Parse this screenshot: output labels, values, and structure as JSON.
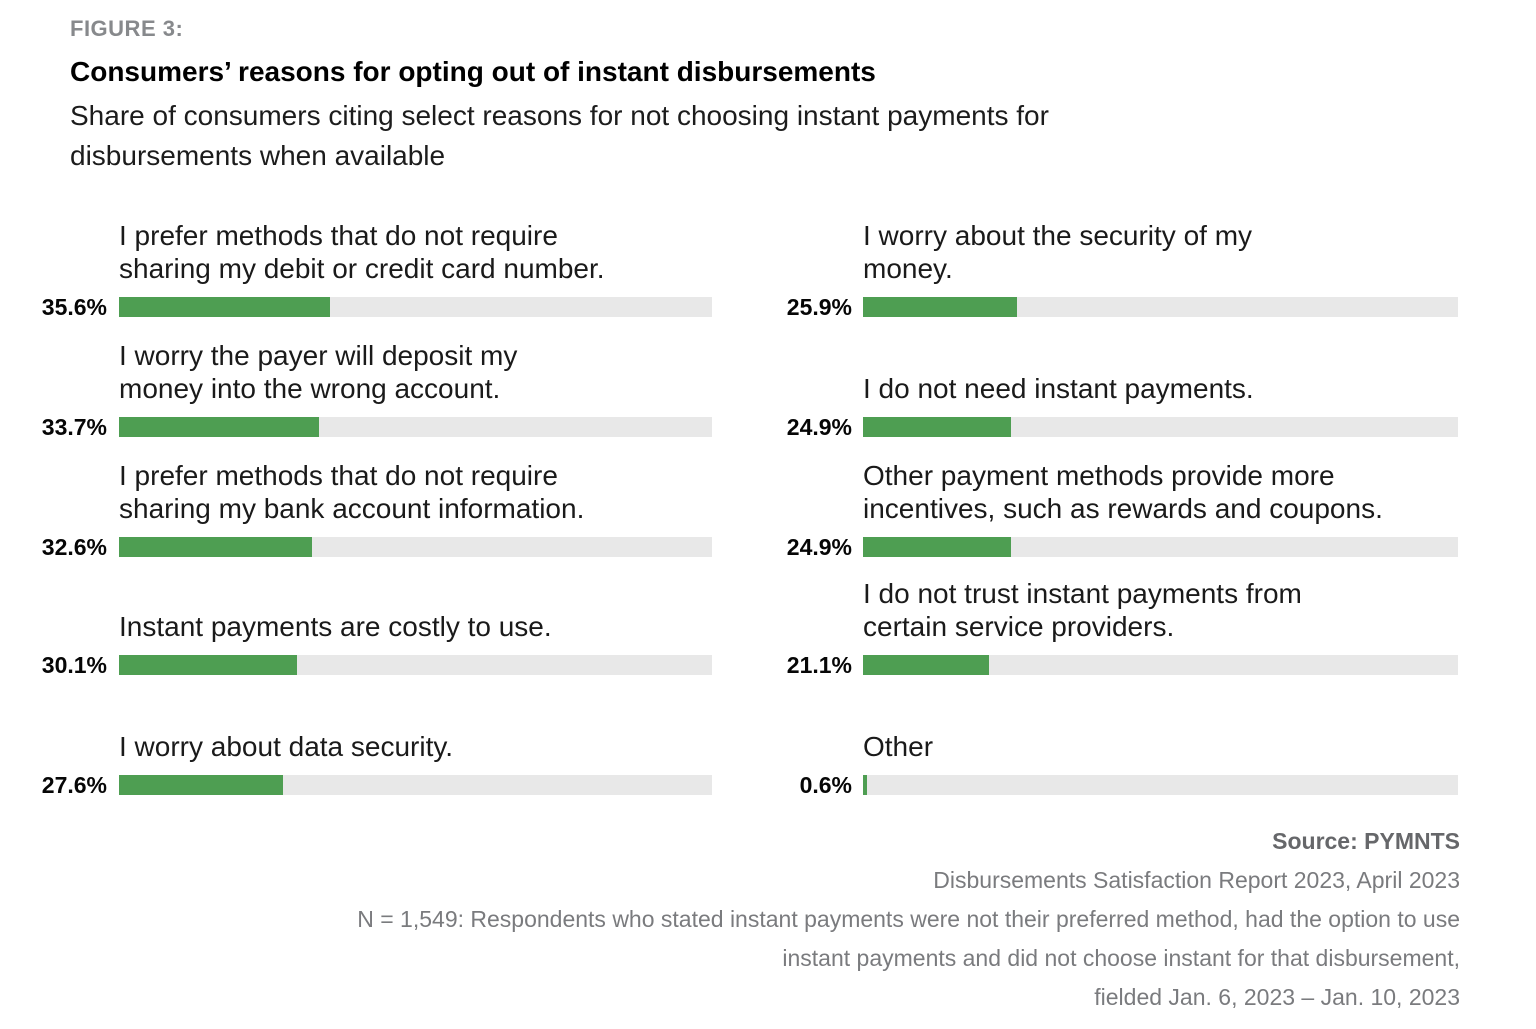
{
  "figure_label": "FIGURE 3:",
  "title": "Consumers’ reasons for opting out of instant disbursements",
  "subtitle_lines": [
    "Share of consumers citing select reasons for not choosing instant payments for",
    "disbursements when available"
  ],
  "chart_data": {
    "type": "bar",
    "orientation": "horizontal",
    "unit": "percent",
    "xlim": [
      0,
      100
    ],
    "bar_color": "#4e9e52",
    "track_color": "#e8e8e8",
    "title": "Consumers’ reasons for opting out of instant disbursements",
    "columns": [
      {
        "items": [
          {
            "value": 35.6,
            "display": "35.6%",
            "label_lines": [
              "I prefer methods that do not require",
              "sharing my debit or credit card number."
            ]
          },
          {
            "value": 33.7,
            "display": "33.7%",
            "label_lines": [
              "I worry the payer will deposit my",
              "money into the wrong account."
            ]
          },
          {
            "value": 32.6,
            "display": "32.6%",
            "label_lines": [
              "I prefer methods that do not require",
              "sharing my bank account information."
            ]
          },
          {
            "value": 30.1,
            "display": "30.1%",
            "label_lines": [
              "Instant payments are costly to use."
            ]
          },
          {
            "value": 27.6,
            "display": "27.6%",
            "label_lines": [
              "I worry about data security."
            ]
          }
        ]
      },
      {
        "items": [
          {
            "value": 25.9,
            "display": "25.9%",
            "label_lines": [
              "I worry about the security of my",
              "money."
            ]
          },
          {
            "value": 24.9,
            "display": "24.9%",
            "label_lines": [
              "I do not need instant payments."
            ]
          },
          {
            "value": 24.9,
            "display": "24.9%",
            "label_lines": [
              "Other payment methods provide more",
              "incentives, such as rewards and coupons."
            ]
          },
          {
            "value": 21.1,
            "display": "21.1%",
            "label_lines": [
              "I do not trust instant payments from",
              "certain service providers."
            ]
          },
          {
            "value": 0.6,
            "display": "0.6%",
            "label_lines": [
              "Other"
            ]
          }
        ]
      }
    ]
  },
  "footer": {
    "source": "Source: PYMNTS",
    "report": "Disbursements Satisfaction Report 2023, April 2023",
    "note_lines": [
      "N = 1,549: Respondents who stated instant payments were not their preferred method, had the option to use",
      "instant payments and did not choose instant for that disbursement,",
      "fielded Jan. 6, 2023 – Jan. 10, 2023"
    ]
  }
}
